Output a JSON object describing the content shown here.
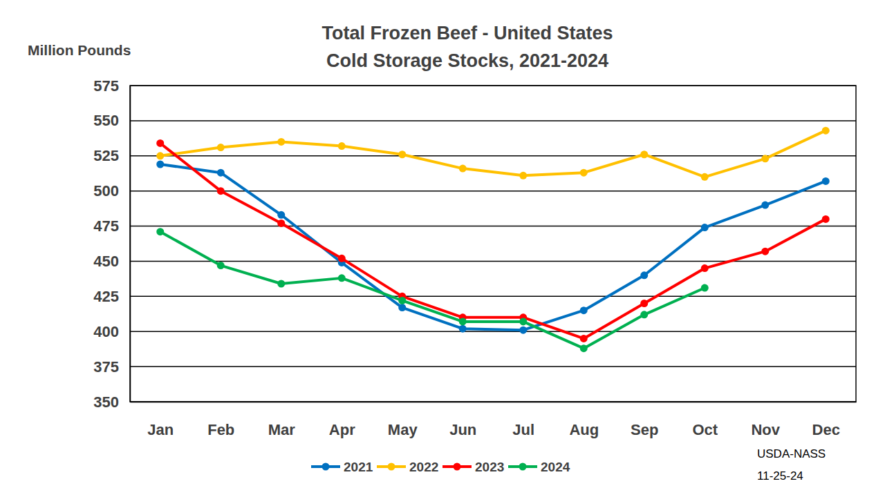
{
  "chart_data": {
    "type": "line",
    "title": "Total Frozen Beef - United States",
    "subtitle": "Cold Storage Stocks, 2021-2024",
    "y_label": "Million Pounds",
    "annotations": [
      "USDA-NASS",
      "11-25-24"
    ],
    "categories": [
      "Jan",
      "Feb",
      "Mar",
      "Apr",
      "May",
      "Jun",
      "Jul",
      "Aug",
      "Sep",
      "Oct",
      "Nov",
      "Dec"
    ],
    "series": [
      {
        "name": "2021",
        "color": "#0070C0",
        "values": [
          519,
          513,
          483,
          449,
          417,
          402,
          401,
          415,
          440,
          474,
          490,
          507
        ]
      },
      {
        "name": "2022",
        "color": "#FFC000",
        "values": [
          525,
          531,
          535,
          532,
          526,
          516,
          511,
          513,
          526,
          510,
          523,
          543
        ]
      },
      {
        "name": "2023",
        "color": "#FF0000",
        "values": [
          534,
          500,
          477,
          452,
          425,
          410,
          410,
          395,
          420,
          445,
          457,
          480
        ]
      },
      {
        "name": "2024",
        "color": "#00B050",
        "values": [
          471,
          447,
          434,
          438,
          422,
          407,
          407,
          388,
          412,
          431,
          null,
          null
        ]
      }
    ],
    "ylim": [
      350,
      575
    ],
    "yticks": [
      350,
      375,
      400,
      425,
      450,
      475,
      500,
      525,
      550,
      575
    ],
    "grid": true,
    "legend": "bottom",
    "marker": "circle",
    "line_style": "solid"
  }
}
